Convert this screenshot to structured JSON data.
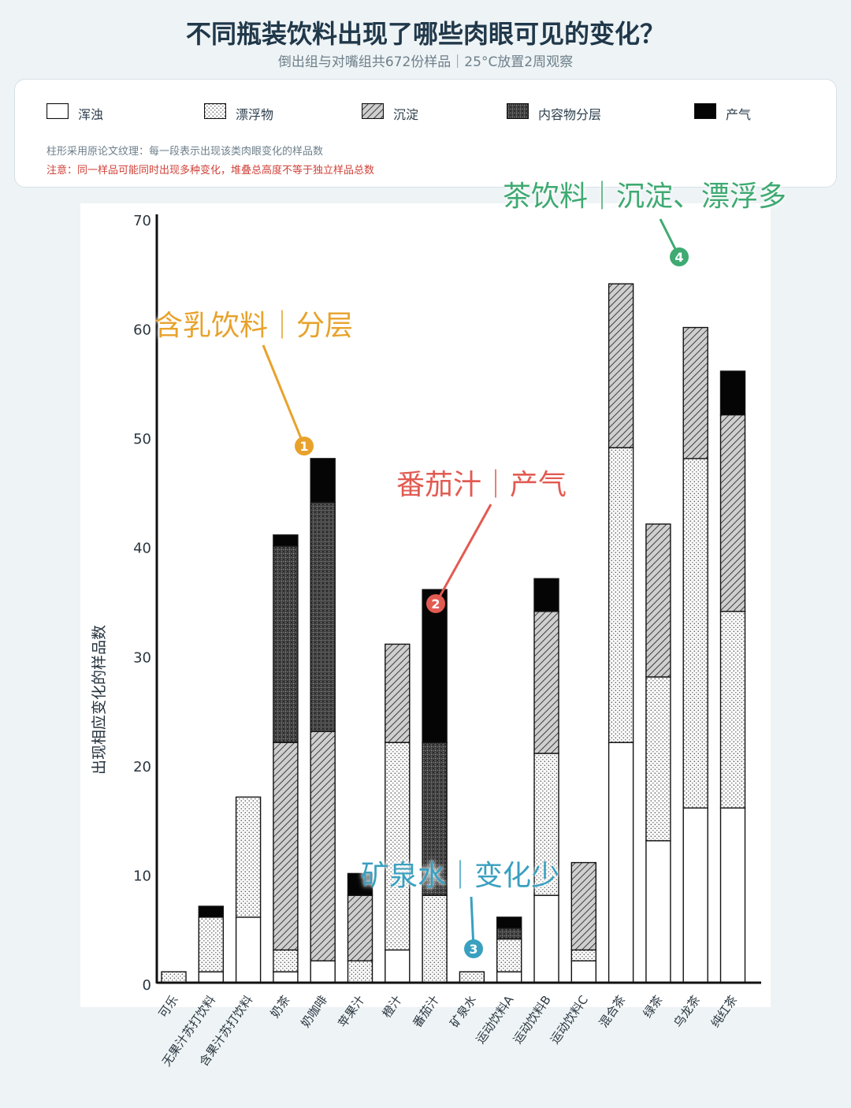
{
  "header": {
    "title": "不同瓶装饮料出现了哪些肉眼可见的变化？",
    "subtitle": "倒出组与对嘴组共672份样品｜25°C放置2周观察"
  },
  "legend": {
    "items": [
      {
        "label": "浑浊",
        "pattern": "white"
      },
      {
        "label": "漂浮物",
        "pattern": "dots"
      },
      {
        "label": "沉淀",
        "pattern": "hatch"
      },
      {
        "label": "内容物分层",
        "pattern": "crosshatch"
      },
      {
        "label": "产气",
        "pattern": "black"
      }
    ],
    "note": "柱形采用原论文纹理：每一段表示出现该类肉眼变化的样品数",
    "warning": "注意：同一样品可能同时出现多种变化，堆叠总高度不等于独立样品总数"
  },
  "annotations": [
    {
      "num": "1",
      "text": "含乳饮料｜分层",
      "color": "#e8a22c"
    },
    {
      "num": "2",
      "text": "番茄汁｜产气",
      "color": "#e25b52"
    },
    {
      "num": "3",
      "text": "矿泉水｜变化少",
      "color": "#3aa0bf"
    },
    {
      "num": "4",
      "text": "茶饮料｜沉淀、漂浮多",
      "color": "#3faa72"
    }
  ],
  "chart_data": {
    "type": "bar",
    "stacked": true,
    "ylabel": "出现相应变化的样品数",
    "ylim": [
      0,
      70
    ],
    "yticks": [
      0,
      10,
      20,
      30,
      40,
      50,
      60,
      70
    ],
    "categories": [
      "可乐",
      "无果汁苏打饮料",
      "含果汁苏打饮料",
      "奶茶",
      "奶咖啡",
      "苹果汁",
      "橙汁",
      "番茄汁",
      "矿泉水",
      "运动饮料A",
      "运动饮料B",
      "运动饮料C",
      "混合茶",
      "绿茶",
      "乌龙茶",
      "纯红茶"
    ],
    "series": [
      {
        "name": "浑浊",
        "values": [
          0,
          1,
          6,
          1,
          2,
          0,
          3,
          0,
          0,
          1,
          8,
          2,
          22,
          13,
          16,
          16
        ]
      },
      {
        "name": "漂浮物",
        "values": [
          1,
          5,
          11,
          2,
          0,
          2,
          19,
          8,
          1,
          3,
          13,
          1,
          27,
          15,
          32,
          18
        ]
      },
      {
        "name": "沉淀",
        "values": [
          0,
          0,
          0,
          19,
          21,
          6,
          9,
          0,
          0,
          0,
          13,
          8,
          15,
          14,
          12,
          18
        ]
      },
      {
        "name": "内容物分层",
        "values": [
          0,
          0,
          0,
          18,
          21,
          0,
          0,
          14,
          0,
          1,
          0,
          0,
          0,
          0,
          0,
          0
        ]
      },
      {
        "name": "产气",
        "values": [
          0,
          1,
          0,
          1,
          4,
          2,
          0,
          14,
          0,
          1,
          3,
          0,
          0,
          0,
          0,
          4
        ]
      }
    ]
  }
}
